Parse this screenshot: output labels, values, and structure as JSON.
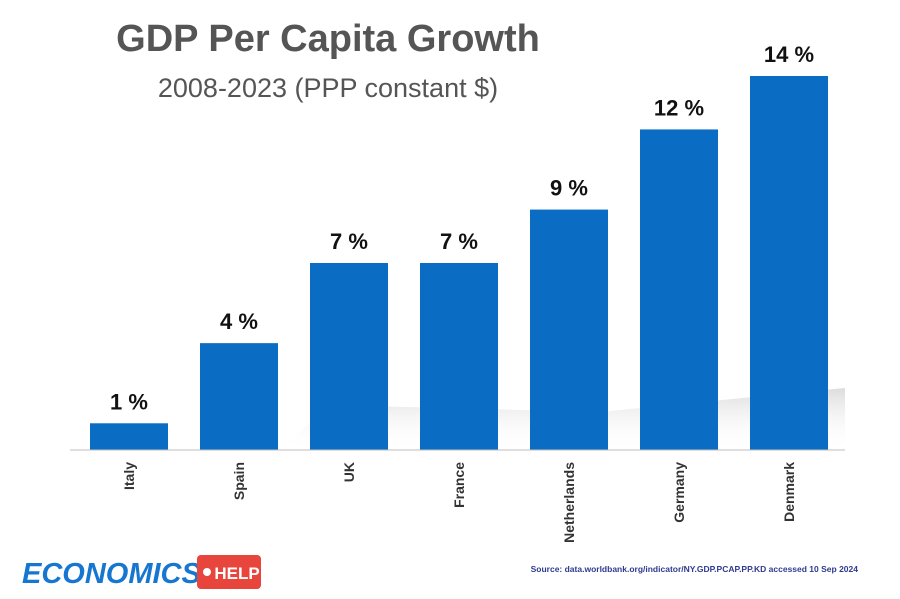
{
  "chart_data": {
    "type": "bar",
    "title": "GDP Per Capita Growth",
    "subtitle": "2008-2023 (PPP constant $)",
    "categories": [
      "Italy",
      "Spain",
      "UK",
      "France",
      "Netherlands",
      "Germany",
      "Denmark"
    ],
    "values": [
      1,
      4,
      7,
      7,
      9,
      12,
      14
    ],
    "value_labels": [
      "1 %",
      "4 %",
      "7 %",
      "7 %",
      "9 %",
      "12 %",
      "14 %"
    ],
    "xlabel": "",
    "ylabel": "",
    "ylim": [
      0,
      14
    ],
    "unit": "%",
    "grid": false,
    "legend": "none",
    "bar_color": "#0b6cc4"
  },
  "source": "Source: data.worldbank.org/indicator/NY.GDP.PCAP.PP.KD accessed 10 Sep 2024",
  "logo": {
    "word": "ECONOMICS",
    "tag": "HELP",
    "word_color": "#1777d0",
    "tag_color": "#e8453c"
  }
}
